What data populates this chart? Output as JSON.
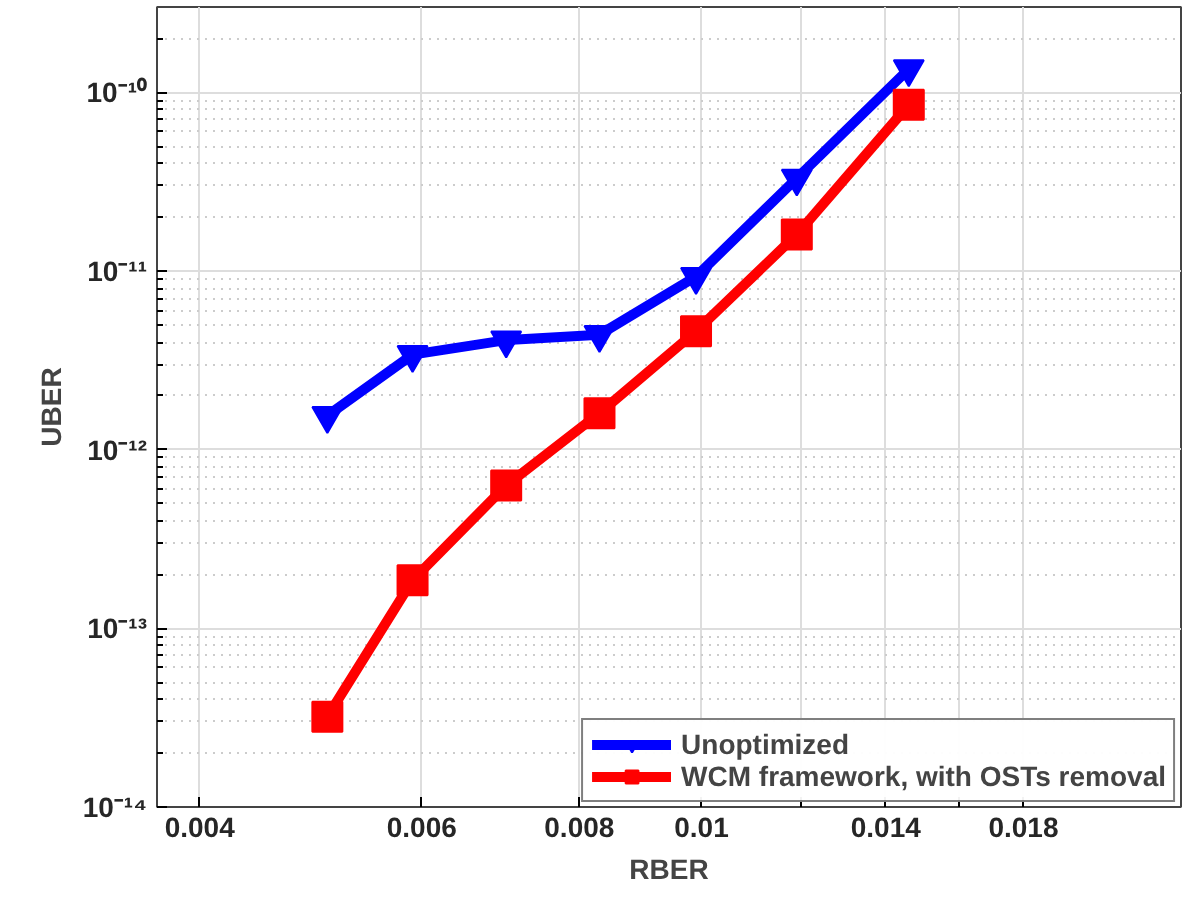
{
  "chart_data": {
    "type": "line",
    "xlabel": "RBER",
    "ylabel": "UBER",
    "log": "xy",
    "xlim": [
      0.0037,
      0.024
    ],
    "ylim": [
      1e-14,
      3e-10
    ],
    "xticks": [
      0.004,
      0.006,
      0.008,
      0.01,
      {
        "value": 0.012,
        "label": null
      },
      0.014,
      {
        "value": 0.016,
        "label": null
      },
      0.018
    ],
    "yticks": [
      {
        "value": 1e-14,
        "label": "10⁻¹⁴"
      },
      {
        "value": 1e-13,
        "label": "10⁻¹³"
      },
      {
        "value": 1e-12,
        "label": "10⁻¹²"
      },
      {
        "value": 1e-11,
        "label": "10⁻¹¹"
      },
      {
        "value": 1e-10,
        "label": "10⁻¹⁰"
      }
    ],
    "x": [
      0.00505,
      0.0059,
      0.007,
      0.0083,
      0.0099,
      0.0119,
      0.0146
    ],
    "series": [
      {
        "name": "Unoptimized",
        "color": "#0000ff",
        "marker": "triangle",
        "values": [
          1.55e-12,
          3.4e-12,
          4.1e-12,
          4.4e-12,
          9.3e-12,
          3.3e-11,
          1.35e-10
        ]
      },
      {
        "name": "WCM framework, with OSTs removal",
        "color": "#ff0000",
        "marker": "square",
        "values": [
          3.2e-14,
          1.86e-13,
          6.3e-13,
          1.6e-12,
          4.6e-12,
          1.6e-11,
          8.5e-11
        ]
      }
    ],
    "grid": true,
    "legend": "bottom right",
    "line_style": "solid"
  }
}
